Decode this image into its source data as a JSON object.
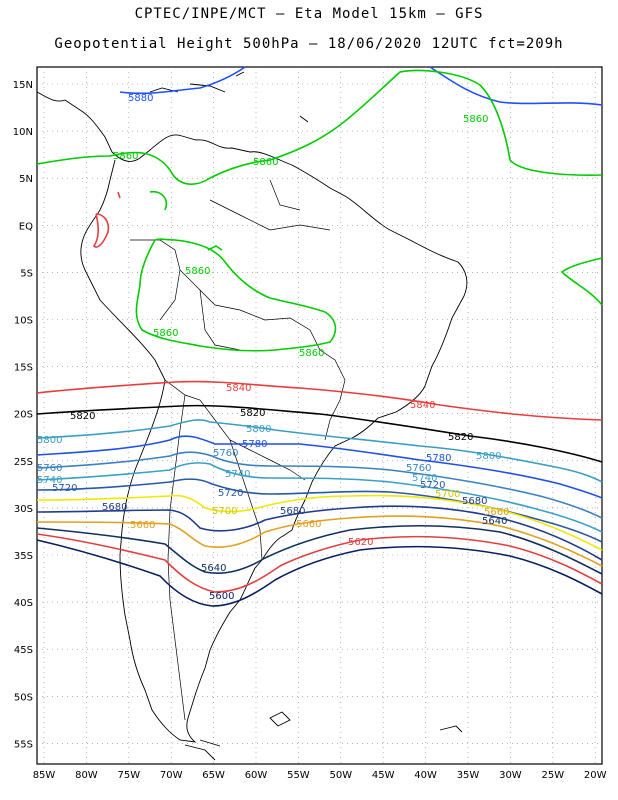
{
  "title_line1": "CPTEC/INPE/MCT —  Eta Model 15km — GFS",
  "title_line2": "Geopotential Height 500hPa — 18/06/2020 12UTC fct=209h",
  "lat_labels": [
    "15N",
    "10N",
    "5N",
    "EQ",
    "5S",
    "10S",
    "15S",
    "20S",
    "25S",
    "30S",
    "35S",
    "40S",
    "45S",
    "50S",
    "55S"
  ],
  "lon_labels": [
    "85W",
    "80W",
    "75W",
    "70W",
    "65W",
    "60W",
    "55W",
    "50W",
    "45W",
    "40W",
    "35W",
    "30W",
    "25W",
    "20W"
  ],
  "colors": {
    "c5880": "#1e50ff",
    "c5860": "#00cc00",
    "c5840": "#e83c3c",
    "c5820": "#000000",
    "c5800": "#3a9ec4",
    "c5780": "#1e50e6",
    "c5760": "#3a82c0",
    "c5740": "#3aa0c8",
    "c5720": "#2858a8",
    "c5700": "#f0e800",
    "c5680": "#203c8c",
    "c5660": "#e0a020",
    "c5640": "#103060",
    "c5620": "#e04040",
    "c5600": "#0a1e60",
    "coast": "#000000"
  },
  "contour_labels": [
    {
      "text": "5880",
      "color": "#1e50ff"
    },
    {
      "text": "5860",
      "color": "#00cc00"
    },
    {
      "text": "5860",
      "color": "#00cc00"
    },
    {
      "text": "5860",
      "color": "#00cc00"
    },
    {
      "text": "5860",
      "color": "#00cc00"
    },
    {
      "text": "5860",
      "color": "#00cc00"
    },
    {
      "text": "5860",
      "color": "#00cc00"
    },
    {
      "text": "5840",
      "color": "#e83c3c"
    },
    {
      "text": "5840",
      "color": "#e83c3c"
    },
    {
      "text": "5820",
      "color": "#000000"
    },
    {
      "text": "5820",
      "color": "#000000"
    },
    {
      "text": "5820",
      "color": "#000000"
    },
    {
      "text": "5800",
      "color": "#3a9ec4"
    },
    {
      "text": "5800",
      "color": "#3a9ec4"
    },
    {
      "text": "5800",
      "color": "#3a9ec4"
    },
    {
      "text": "5780",
      "color": "#1e50e6"
    },
    {
      "text": "5780",
      "color": "#1e50e6"
    },
    {
      "text": "5760",
      "color": "#3a82c0"
    },
    {
      "text": "5760",
      "color": "#3a82c0"
    },
    {
      "text": "5760",
      "color": "#3a82c0"
    },
    {
      "text": "5740",
      "color": "#3aa0c8"
    },
    {
      "text": "5740",
      "color": "#3aa0c8"
    },
    {
      "text": "5740",
      "color": "#3aa0c8"
    },
    {
      "text": "5720",
      "color": "#2858a8"
    },
    {
      "text": "5720",
      "color": "#2858a8"
    },
    {
      "text": "5720",
      "color": "#2858a8"
    },
    {
      "text": "5700",
      "color": "#d8c800"
    },
    {
      "text": "5700",
      "color": "#d8c800"
    },
    {
      "text": "5680",
      "color": "#203c8c"
    },
    {
      "text": "5680",
      "color": "#203c8c"
    },
    {
      "text": "5680",
      "color": "#203c8c"
    },
    {
      "text": "5660",
      "color": "#e0a020"
    },
    {
      "text": "5660",
      "color": "#e0a020"
    },
    {
      "text": "5660",
      "color": "#e0a020"
    },
    {
      "text": "5640",
      "color": "#103060"
    },
    {
      "text": "5640",
      "color": "#103060"
    },
    {
      "text": "5620",
      "color": "#e04040"
    },
    {
      "text": "5600",
      "color": "#0a1e60"
    }
  ]
}
